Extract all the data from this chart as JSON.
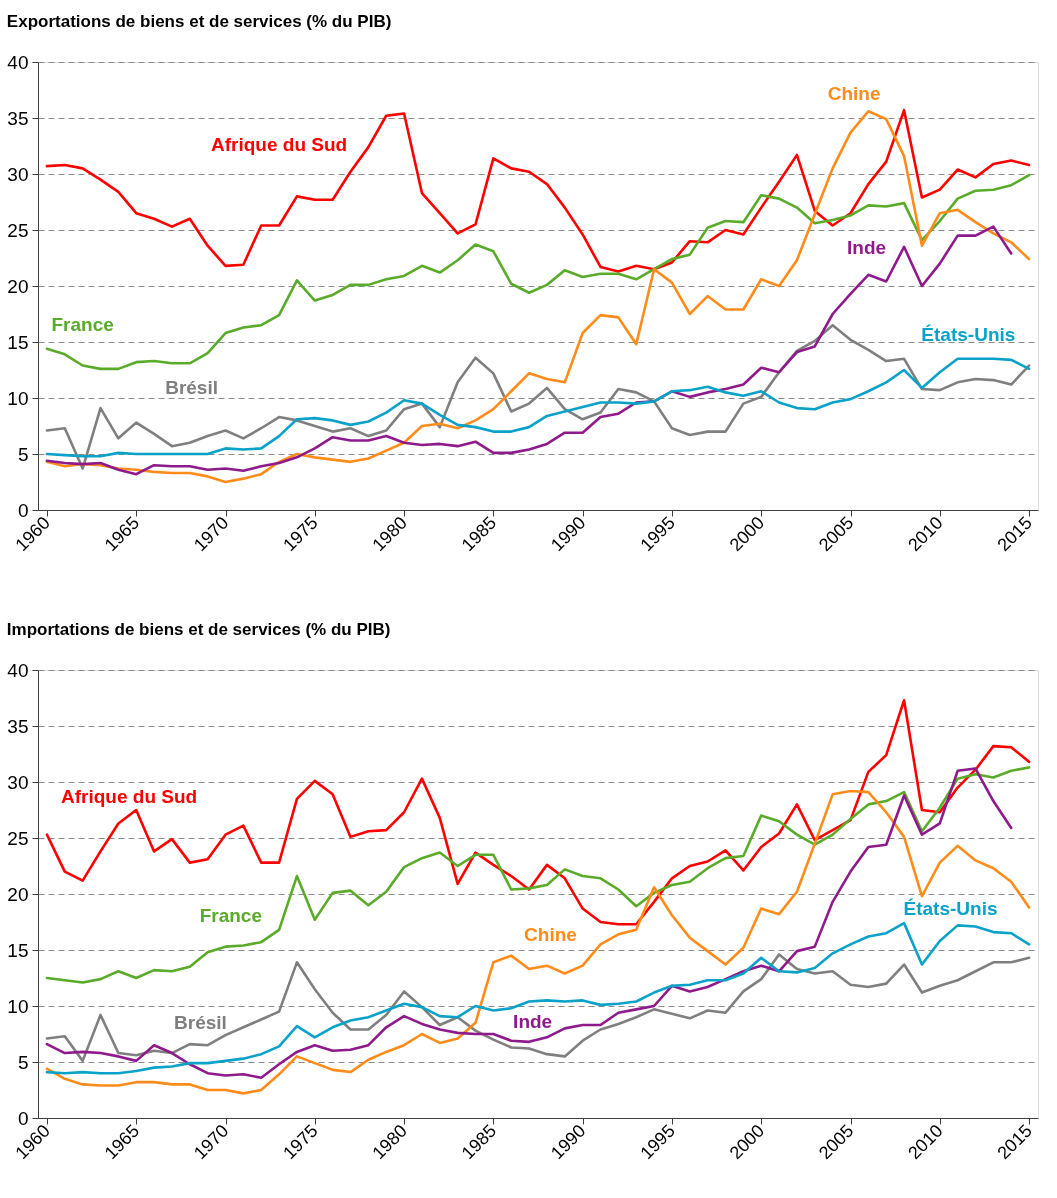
{
  "chart_data": [
    {
      "type": "line",
      "title": "Exportations de biens et de services (% du PIB)",
      "x": [
        1960,
        1961,
        1962,
        1963,
        1964,
        1965,
        1966,
        1967,
        1968,
        1969,
        1970,
        1971,
        1972,
        1973,
        1974,
        1975,
        1976,
        1977,
        1978,
        1979,
        1980,
        1981,
        1982,
        1983,
        1984,
        1985,
        1986,
        1987,
        1988,
        1989,
        1990,
        1991,
        1992,
        1993,
        1994,
        1995,
        1996,
        1997,
        1998,
        1999,
        2000,
        2001,
        2002,
        2003,
        2004,
        2005,
        2006,
        2007,
        2008,
        2009,
        2010,
        2011,
        2012,
        2013,
        2014,
        2015
      ],
      "xlim": [
        1959.5,
        2015.5
      ],
      "xticks": [
        1960,
        1965,
        1970,
        1975,
        1980,
        1985,
        1990,
        1995,
        2000,
        2005,
        2010,
        2015
      ],
      "ylim": [
        0,
        40
      ],
      "yticks": [
        0,
        5,
        10,
        15,
        20,
        25,
        30,
        35,
        40
      ],
      "grid": "y",
      "series": [
        {
          "name": "Afrique du Sud",
          "color": "#ff0000",
          "values": [
            30.7,
            30.8,
            30.5,
            29.5,
            28.4,
            26.5,
            26.0,
            25.3,
            26.0,
            23.6,
            21.8,
            21.9,
            25.4,
            25.4,
            28.0,
            27.7,
            27.7,
            30.2,
            32.4,
            35.2,
            35.4,
            28.3,
            26.5,
            24.7,
            25.5,
            31.4,
            30.5,
            30.2,
            29.1,
            27.0,
            24.6,
            21.7,
            21.3,
            21.8,
            21.5,
            22.1,
            24.0,
            23.9,
            25.0,
            24.6,
            27.0,
            29.3,
            31.7,
            26.7,
            25.4,
            26.5,
            29.1,
            31.1,
            35.7,
            27.9,
            28.6,
            30.4,
            29.7,
            30.9,
            31.2,
            30.8
          ]
        },
        {
          "name": "France",
          "color": "#5aab2a",
          "values": [
            14.4,
            13.9,
            12.9,
            12.6,
            12.6,
            13.2,
            13.3,
            13.1,
            13.1,
            14.0,
            15.8,
            16.3,
            16.5,
            17.4,
            20.5,
            18.7,
            19.2,
            20.1,
            20.1,
            20.6,
            20.9,
            21.8,
            21.2,
            22.3,
            23.7,
            23.1,
            20.2,
            19.4,
            20.1,
            21.4,
            20.8,
            21.1,
            21.1,
            20.6,
            21.5,
            22.4,
            22.8,
            25.2,
            25.8,
            25.7,
            28.1,
            27.8,
            27.0,
            25.6,
            25.9,
            26.3,
            27.2,
            27.1,
            27.4,
            24.1,
            25.8,
            27.8,
            28.5,
            28.6,
            29.0,
            29.9
          ]
        },
        {
          "name": "Brésil",
          "color": "#7f7f7f",
          "values": [
            7.1,
            7.3,
            3.7,
            9.1,
            6.4,
            7.8,
            6.8,
            5.7,
            6.0,
            6.6,
            7.1,
            6.4,
            7.3,
            8.3,
            8.0,
            7.5,
            7.0,
            7.3,
            6.6,
            7.1,
            9.0,
            9.5,
            7.4,
            11.4,
            13.6,
            12.2,
            8.8,
            9.5,
            10.9,
            9.0,
            8.1,
            8.7,
            10.8,
            10.5,
            9.7,
            7.3,
            6.7,
            7.0,
            7.0,
            9.5,
            10.1,
            12.3,
            14.2,
            15.1,
            16.5,
            15.2,
            14.3,
            13.3,
            13.5,
            10.8,
            10.7,
            11.4,
            11.7,
            11.6,
            11.2,
            12.9
          ]
        },
        {
          "name": "Chine",
          "color": "#ff8c1a",
          "values": [
            4.3,
            3.9,
            4.1,
            4.0,
            3.7,
            3.6,
            3.4,
            3.3,
            3.3,
            3.0,
            2.5,
            2.8,
            3.2,
            4.3,
            5.0,
            4.7,
            4.5,
            4.3,
            4.6,
            5.3,
            6.0,
            7.5,
            7.7,
            7.3,
            8.0,
            9.0,
            10.6,
            12.2,
            11.7,
            11.4,
            15.8,
            17.4,
            17.2,
            14.8,
            21.5,
            20.3,
            17.5,
            19.1,
            17.9,
            17.9,
            20.6,
            20.0,
            22.3,
            26.4,
            30.5,
            33.7,
            35.6,
            34.9,
            31.6,
            23.6,
            26.5,
            26.8,
            25.7,
            24.7,
            23.9,
            22.4
          ]
        },
        {
          "name": "Inde",
          "color": "#8e1a8b",
          "values": [
            4.4,
            4.2,
            4.1,
            4.2,
            3.6,
            3.2,
            4.0,
            3.9,
            3.9,
            3.6,
            3.7,
            3.5,
            3.9,
            4.2,
            4.7,
            5.5,
            6.5,
            6.2,
            6.2,
            6.6,
            6.0,
            5.8,
            5.9,
            5.7,
            6.1,
            5.1,
            5.1,
            5.4,
            5.9,
            6.9,
            6.9,
            8.3,
            8.6,
            9.6,
            9.7,
            10.6,
            10.1,
            10.5,
            10.8,
            11.2,
            12.7,
            12.3,
            14.1,
            14.6,
            17.5,
            19.3,
            21.0,
            20.4,
            23.5,
            20.0,
            22.0,
            24.5,
            24.5,
            25.3,
            22.9,
            null
          ]
        },
        {
          "name": "États-Unis",
          "color": "#0aa2c8",
          "values": [
            5.0,
            4.9,
            4.8,
            4.8,
            5.1,
            5.0,
            5.0,
            5.0,
            5.0,
            5.0,
            5.5,
            5.4,
            5.5,
            6.6,
            8.1,
            8.2,
            8.0,
            7.6,
            7.9,
            8.7,
            9.8,
            9.5,
            8.5,
            7.6,
            7.4,
            7.0,
            7.0,
            7.4,
            8.4,
            8.8,
            9.2,
            9.6,
            9.6,
            9.5,
            9.7,
            10.6,
            10.7,
            11.0,
            10.5,
            10.2,
            10.6,
            9.6,
            9.1,
            9.0,
            9.6,
            9.9,
            10.6,
            11.4,
            12.5,
            10.9,
            12.3,
            13.5,
            13.5,
            13.5,
            13.4,
            12.6
          ]
        }
      ]
    },
    {
      "type": "line",
      "title": "Importations de biens et de services (% du PIB)",
      "x": [
        1960,
        1961,
        1962,
        1963,
        1964,
        1965,
        1966,
        1967,
        1968,
        1969,
        1970,
        1971,
        1972,
        1973,
        1974,
        1975,
        1976,
        1977,
        1978,
        1979,
        1980,
        1981,
        1982,
        1983,
        1984,
        1985,
        1986,
        1987,
        1988,
        1989,
        1990,
        1991,
        1992,
        1993,
        1994,
        1995,
        1996,
        1997,
        1998,
        1999,
        2000,
        2001,
        2002,
        2003,
        2004,
        2005,
        2006,
        2007,
        2008,
        2009,
        2010,
        2011,
        2012,
        2013,
        2014,
        2015
      ],
      "xlim": [
        1959.5,
        2015.5
      ],
      "xticks": [
        1960,
        1965,
        1970,
        1975,
        1980,
        1985,
        1990,
        1995,
        2000,
        2005,
        2010,
        2015
      ],
      "ylim": [
        0,
        40
      ],
      "yticks": [
        0,
        5,
        10,
        15,
        20,
        25,
        30,
        35,
        40
      ],
      "grid": "y",
      "series": [
        {
          "name": "Afrique du Sud",
          "color": "#ff0000",
          "values": [
            25.3,
            22.0,
            21.2,
            23.8,
            26.3,
            27.5,
            23.8,
            24.9,
            22.8,
            23.1,
            25.3,
            26.1,
            22.8,
            22.8,
            28.5,
            30.1,
            28.9,
            25.1,
            25.6,
            25.7,
            27.3,
            30.3,
            26.8,
            20.9,
            23.7,
            22.6,
            21.6,
            20.4,
            22.6,
            21.4,
            18.7,
            17.5,
            17.3,
            17.3,
            19.3,
            21.4,
            22.5,
            22.9,
            23.9,
            22.1,
            24.2,
            25.4,
            28.0,
            24.8,
            25.7,
            26.6,
            30.9,
            32.4,
            37.3,
            27.5,
            27.3,
            29.5,
            31.1,
            33.2,
            33.1,
            31.8
          ]
        },
        {
          "name": "France",
          "color": "#5aab2a",
          "values": [
            12.5,
            12.3,
            12.1,
            12.4,
            13.1,
            12.5,
            13.2,
            13.1,
            13.5,
            14.8,
            15.3,
            15.4,
            15.7,
            16.8,
            21.6,
            17.7,
            20.1,
            20.3,
            19.0,
            20.2,
            22.4,
            23.2,
            23.7,
            22.5,
            23.5,
            23.5,
            20.4,
            20.5,
            20.8,
            22.2,
            21.6,
            21.4,
            20.4,
            18.9,
            20.1,
            20.8,
            21.1,
            22.3,
            23.2,
            23.4,
            27.0,
            26.5,
            25.3,
            24.4,
            25.3,
            26.7,
            28.0,
            28.3,
            29.1,
            25.6,
            27.7,
            30.3,
            30.7,
            30.4,
            31.0,
            31.3
          ]
        },
        {
          "name": "Brésil",
          "color": "#7f7f7f",
          "values": [
            7.1,
            7.3,
            5.1,
            9.2,
            5.8,
            5.6,
            6.0,
            5.8,
            6.6,
            6.5,
            7.4,
            8.1,
            8.8,
            9.5,
            13.9,
            11.5,
            9.4,
            7.9,
            7.9,
            9.2,
            11.3,
            9.9,
            8.3,
            9.0,
            7.8,
            7.0,
            6.3,
            6.2,
            5.7,
            5.5,
            6.9,
            7.9,
            8.4,
            9.0,
            9.7,
            9.3,
            8.9,
            9.6,
            9.4,
            11.3,
            12.4,
            14.6,
            13.3,
            12.9,
            13.1,
            11.9,
            11.7,
            12.0,
            13.7,
            11.2,
            11.8,
            12.3,
            13.1,
            13.9,
            13.9,
            14.3
          ]
        },
        {
          "name": "Chine",
          "color": "#ff8c1a",
          "values": [
            4.4,
            3.5,
            3.0,
            2.9,
            2.9,
            3.2,
            3.2,
            3.0,
            3.0,
            2.5,
            2.5,
            2.2,
            2.5,
            3.9,
            5.5,
            4.9,
            4.3,
            4.1,
            5.2,
            5.9,
            6.5,
            7.5,
            6.7,
            7.1,
            8.5,
            13.9,
            14.5,
            13.3,
            13.6,
            12.9,
            13.6,
            15.5,
            16.4,
            16.8,
            20.6,
            18.1,
            16.1,
            14.9,
            13.7,
            15.2,
            18.7,
            18.2,
            20.2,
            24.5,
            28.9,
            29.2,
            29.1,
            27.3,
            25.1,
            19.8,
            22.8,
            24.3,
            23.0,
            22.3,
            21.1,
            18.8
          ]
        },
        {
          "name": "Inde",
          "color": "#8e1a8b",
          "values": [
            6.6,
            5.8,
            5.9,
            5.8,
            5.5,
            5.1,
            6.5,
            5.8,
            4.8,
            4.0,
            3.8,
            3.9,
            3.6,
            4.8,
            5.9,
            6.5,
            6.0,
            6.1,
            6.5,
            8.1,
            9.1,
            8.4,
            7.9,
            7.6,
            7.5,
            7.5,
            6.9,
            6.8,
            7.2,
            8.0,
            8.3,
            8.3,
            9.4,
            9.7,
            10.0,
            11.8,
            11.3,
            11.7,
            12.4,
            13.1,
            13.6,
            13.1,
            14.9,
            15.3,
            19.3,
            22.0,
            24.2,
            24.4,
            28.8,
            25.3,
            26.3,
            31.0,
            31.2,
            28.3,
            25.9,
            null
          ]
        },
        {
          "name": "États-Unis",
          "color": "#0aa2c8",
          "values": [
            4.1,
            4.0,
            4.1,
            4.0,
            4.0,
            4.2,
            4.5,
            4.6,
            4.9,
            4.9,
            5.1,
            5.3,
            5.7,
            6.4,
            8.2,
            7.2,
            8.1,
            8.7,
            9.0,
            9.6,
            10.2,
            9.9,
            9.1,
            9.0,
            10.0,
            9.6,
            9.8,
            10.4,
            10.5,
            10.4,
            10.5,
            10.1,
            10.2,
            10.4,
            11.2,
            11.8,
            11.9,
            12.3,
            12.3,
            12.9,
            14.3,
            13.1,
            13.0,
            13.4,
            14.7,
            15.5,
            16.2,
            16.5,
            17.4,
            13.7,
            15.8,
            17.2,
            17.1,
            16.6,
            16.5,
            15.5
          ]
        }
      ]
    }
  ]
}
